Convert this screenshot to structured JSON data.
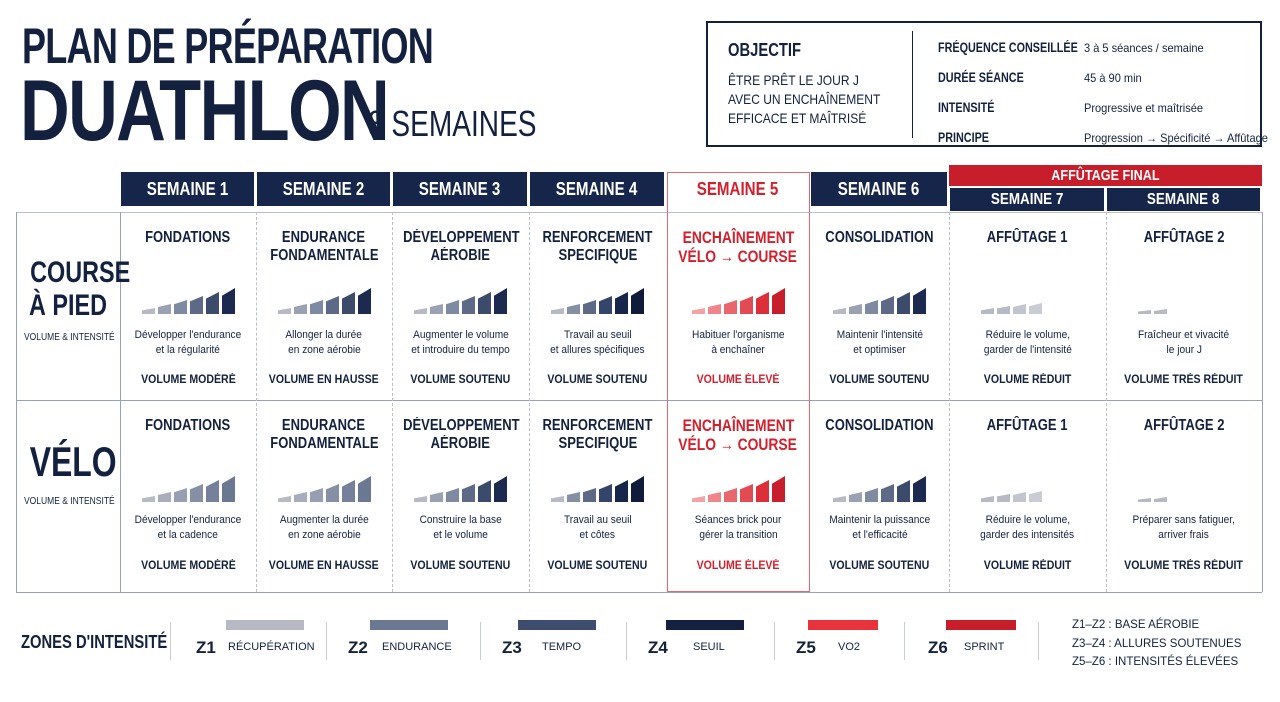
{
  "header": {
    "line1": "PLAN DE PRÉPARATION",
    "line2": "DUATHLON",
    "duration": "8 SEMAINES"
  },
  "objective": {
    "heading": "OBJECTIF",
    "lines": [
      "ÊTRE PRÊT LE JOUR J",
      "AVEC UN ENCHAÎNEMENT",
      "EFFICACE ET MAÎTRISÉ"
    ],
    "facts": [
      {
        "label": "FRÉQUENCE CONSEILLÉE",
        "value": "3 à 5 séances / semaine"
      },
      {
        "label": "DURÉE SÉANCE",
        "value": "45 à 90 min"
      },
      {
        "label": "INTENSITÉ",
        "value": "Progressive et maîtrisée"
      },
      {
        "label": "PRINCIPE",
        "value": "Progression → Spécificité → Affûtage"
      }
    ]
  },
  "taper_banner": "AFFÛTAGE FINAL",
  "weeks": [
    "SEMAINE 1",
    "SEMAINE 2",
    "SEMAINE 3",
    "SEMAINE 4",
    "SEMAINE 5",
    "SEMAINE 6",
    "SEMAINE 7",
    "SEMAINE 8"
  ],
  "rows": [
    {
      "title_lines": [
        "COURSE",
        "À PIED"
      ],
      "subtitle": "VOLUME & INTENSITÉ",
      "cells": [
        {
          "title": [
            "FONDATIONS"
          ],
          "desc": [
            "Développer l'endurance",
            "et la régularité"
          ],
          "volume": "VOLUME MODÉRÉ",
          "bars": 6,
          "style": "navy"
        },
        {
          "title": [
            "ENDURANCE",
            "FONDAMENTALE"
          ],
          "desc": [
            "Allonger la durée",
            "en zone aérobie"
          ],
          "volume": "VOLUME EN HAUSSE",
          "bars": 6,
          "style": "navy"
        },
        {
          "title": [
            "DÉVELOPPEMENT",
            "AÉROBIE"
          ],
          "desc": [
            "Augmenter le volume",
            "et introduire du tempo"
          ],
          "volume": "VOLUME SOUTENU",
          "bars": 6,
          "style": "navy"
        },
        {
          "title": [
            "RENFORCEMENT",
            "SPECIFIQUE"
          ],
          "desc": [
            "Travail au seuil",
            "et allures spécifiques"
          ],
          "volume": "VOLUME SOUTENU",
          "bars": 6,
          "style": "dark"
        },
        {
          "title": [
            "ENCHAÎNEMENT",
            "VÉLO → COURSE"
          ],
          "desc": [
            "Habituer l'organisme",
            "à enchaîner"
          ],
          "volume": "VOLUME ÉLEVÉ",
          "bars": 6,
          "style": "red"
        },
        {
          "title": [
            "CONSOLIDATION"
          ],
          "desc": [
            "Maintenir l'intensité",
            "et optimiser"
          ],
          "volume": "VOLUME SOUTENU",
          "bars": 6,
          "style": "navy"
        },
        {
          "title": [
            "AFFÛTAGE 1"
          ],
          "desc": [
            "Réduire le volume,",
            "garder de l'intensité"
          ],
          "volume": "VOLUME RÉDUIT",
          "bars": 4,
          "style": "grey"
        },
        {
          "title": [
            "AFFÛTAGE 2"
          ],
          "desc": [
            "Fraîcheur et vivacité",
            "le jour J"
          ],
          "volume": "VOLUME TRÈS RÉDUIT",
          "bars": 2,
          "style": "grey"
        }
      ]
    },
    {
      "title_lines": [
        "VÉLO"
      ],
      "subtitle": "VOLUME & INTENSITÉ",
      "cells": [
        {
          "title": [
            "FONDATIONS"
          ],
          "desc": [
            "Développer l'endurance",
            "et la cadence"
          ],
          "volume": "VOLUME MODÉRÉ",
          "bars": 6,
          "style": "light"
        },
        {
          "title": [
            "ENDURANCE",
            "FONDAMENTALE"
          ],
          "desc": [
            "Augmenter la durée",
            "en zone aérobie"
          ],
          "volume": "VOLUME EN HAUSSE",
          "bars": 6,
          "style": "light"
        },
        {
          "title": [
            "DÉVELOPPEMENT",
            "AÉROBIE"
          ],
          "desc": [
            "Construire la base",
            "et le volume"
          ],
          "volume": "VOLUME SOUTENU",
          "bars": 6,
          "style": "navy"
        },
        {
          "title": [
            "RENFORCEMENT",
            "SPECIFIQUE"
          ],
          "desc": [
            "Travail au seuil",
            "et côtes"
          ],
          "volume": "VOLUME SOUTENU",
          "bars": 6,
          "style": "dark"
        },
        {
          "title": [
            "ENCHAÎNEMENT",
            "VÉLO → COURSE"
          ],
          "desc": [
            "Séances brick pour",
            "gérer la transition"
          ],
          "volume": "VOLUME ÉLEVÉ",
          "bars": 6,
          "style": "red"
        },
        {
          "title": [
            "CONSOLIDATION"
          ],
          "desc": [
            "Maintenir la puissance",
            "et l'efficacité"
          ],
          "volume": "VOLUME SOUTENU",
          "bars": 6,
          "style": "navy"
        },
        {
          "title": [
            "AFFÛTAGE 1"
          ],
          "desc": [
            "Réduire le volume,",
            "garder des intensités"
          ],
          "volume": "VOLUME RÉDUIT",
          "bars": 4,
          "style": "grey"
        },
        {
          "title": [
            "AFFÛTAGE 2"
          ],
          "desc": [
            "Préparer sans fatiguer,",
            "arriver frais"
          ],
          "volume": "VOLUME TRÈS RÉDUIT",
          "bars": 2,
          "style": "grey"
        }
      ]
    }
  ],
  "zones": {
    "heading": "ZONES D'INTENSITÉ",
    "items": [
      {
        "code": "Z1",
        "label": "RÉCUPÉRATION",
        "color": "#b7bac4"
      },
      {
        "code": "Z2",
        "label": "ENDURANCE",
        "color": "#6b7891"
      },
      {
        "code": "Z3",
        "label": "TEMPO",
        "color": "#3e4d6e"
      },
      {
        "code": "Z4",
        "label": "SEUIL",
        "color": "#13213f"
      },
      {
        "code": "Z5",
        "label": "VO2",
        "color": "#e8323c"
      },
      {
        "code": "Z6",
        "label": "SPRINT",
        "color": "#c81e2b"
      }
    ],
    "notes": [
      "Z1–Z2 : BASE AÉROBIE",
      "Z3–Z4 : ALLURES SOUTENUES",
      "Z5–Z6 : INTENSITÉS ÉLEVÉES"
    ]
  },
  "colors": {
    "navy": "#16254a",
    "red": "#d41f2c",
    "grid": "#b9bfcc"
  }
}
